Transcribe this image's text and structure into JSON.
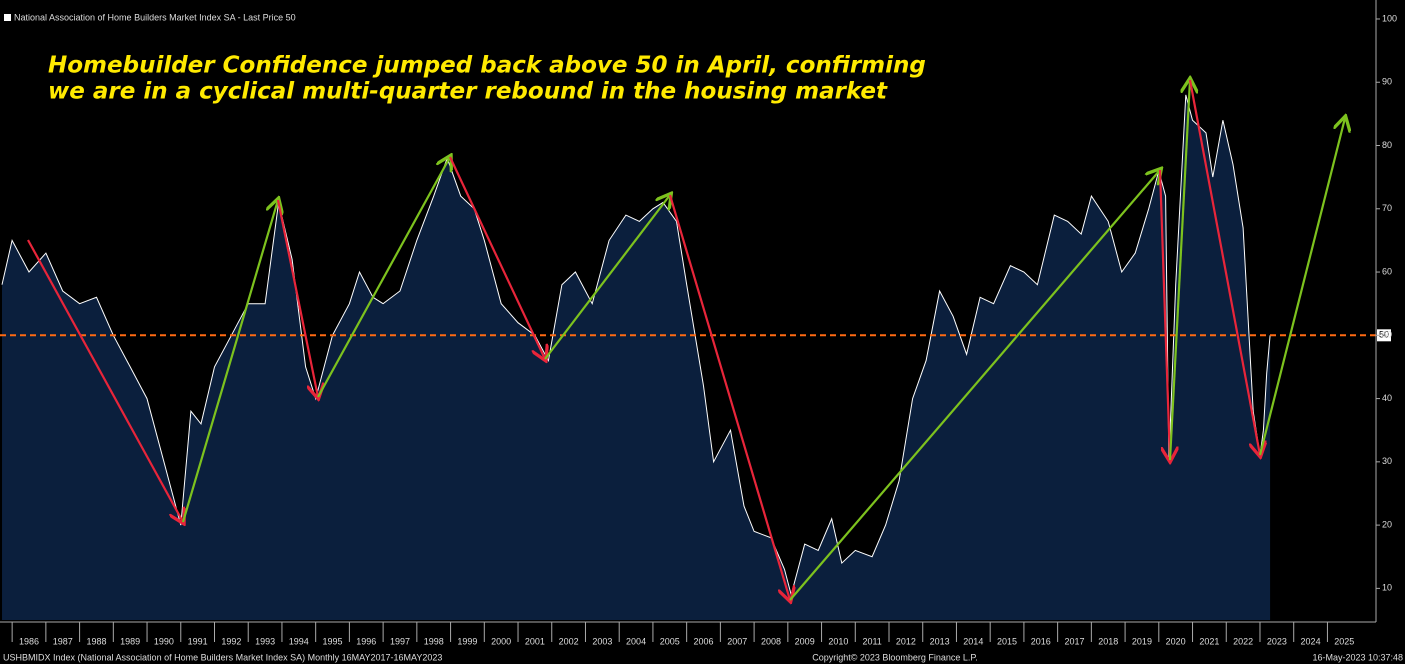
{
  "chart_data": {
    "type": "area",
    "legend_label": "National Association of Home Builders Market Index SA - Last Price 50",
    "annotation_lines": [
      "Homebuilder Confidence jumped back above 50 in April, confirming",
      "we are in a cyclical multi-quarter rebound in the housing market"
    ],
    "footer_left": "USHBMIDX Index (National Association of Home Builders Market Index SA)  Monthly 16MAY2017-16MAY2023",
    "footer_center": "Copyright© 2023 Bloomberg Finance L.P.",
    "footer_right": "16-May-2023 10:37:48",
    "x": [
      1985.7,
      1986.0,
      1986.5,
      1987.0,
      1987.5,
      1988.0,
      1988.5,
      1989.0,
      1989.5,
      1990.0,
      1990.5,
      1991.0,
      1991.3,
      1991.6,
      1992.0,
      1992.5,
      1993.0,
      1993.5,
      1993.9,
      1994.3,
      1994.7,
      1995.0,
      1995.5,
      1996.0,
      1996.3,
      1996.7,
      1997.0,
      1997.5,
      1998.0,
      1998.5,
      1998.9,
      1999.3,
      1999.7,
      2000.0,
      2000.5,
      2001.0,
      2001.5,
      2001.9,
      2002.3,
      2002.7,
      2003.2,
      2003.7,
      2004.2,
      2004.6,
      2005.0,
      2005.3,
      2005.7,
      2006.0,
      2006.5,
      2006.8,
      2007.3,
      2007.7,
      2008.0,
      2008.5,
      2008.9,
      2009.1,
      2009.5,
      2009.9,
      2010.3,
      2010.6,
      2011.0,
      2011.5,
      2011.9,
      2012.3,
      2012.7,
      2013.1,
      2013.5,
      2013.9,
      2014.3,
      2014.7,
      2015.1,
      2015.6,
      2016.0,
      2016.4,
      2016.9,
      2017.3,
      2017.7,
      2018.0,
      2018.5,
      2018.9,
      2019.3,
      2019.7,
      2020.0,
      2020.2,
      2020.3,
      2020.5,
      2020.8,
      2021.0,
      2021.4,
      2021.6,
      2021.9,
      2022.2,
      2022.5,
      2022.8,
      2023.0,
      2023.1,
      2023.2,
      2023.3
    ],
    "series": [
      {
        "name": "National Association of Home Builders Market Index SA",
        "color": "#ffffff",
        "fill": "#0b1f3d",
        "values": [
          58,
          65,
          60,
          63,
          57,
          55,
          56,
          50,
          45,
          40,
          30,
          20,
          38,
          36,
          45,
          50,
          55,
          55,
          71,
          62,
          45,
          40,
          50,
          55,
          60,
          56,
          55,
          57,
          65,
          72,
          78,
          72,
          70,
          65,
          55,
          52,
          50,
          46,
          58,
          60,
          55,
          65,
          69,
          68,
          70,
          71,
          68,
          58,
          42,
          30,
          35,
          23,
          19,
          18,
          13,
          9,
          17,
          16,
          21,
          14,
          16,
          15,
          20,
          27,
          40,
          46,
          57,
          53,
          47,
          56,
          55,
          61,
          60,
          58,
          69,
          68,
          66,
          72,
          68,
          60,
          63,
          70,
          76,
          72,
          30,
          58,
          88,
          84,
          82,
          75,
          84,
          77,
          67,
          38,
          31,
          35,
          44,
          50
        ]
      }
    ],
    "ref_line": {
      "value": 50,
      "color": "#ff6a13"
    },
    "xlim": [
      1985.64,
      2026.44
    ],
    "xticks": [
      1986,
      1987,
      1988,
      1989,
      1990,
      1991,
      1992,
      1993,
      1994,
      1995,
      1996,
      1997,
      1998,
      1999,
      2000,
      2001,
      2002,
      2003,
      2004,
      2005,
      2006,
      2007,
      2008,
      2009,
      2010,
      2011,
      2012,
      2013,
      2014,
      2015,
      2016,
      2017,
      2018,
      2019,
      2020,
      2021,
      2022,
      2023,
      2024,
      2025
    ],
    "ylim": [
      5,
      103
    ],
    "yticks": [
      10,
      20,
      30,
      40,
      50,
      60,
      70,
      80,
      90,
      100
    ]
  }
}
